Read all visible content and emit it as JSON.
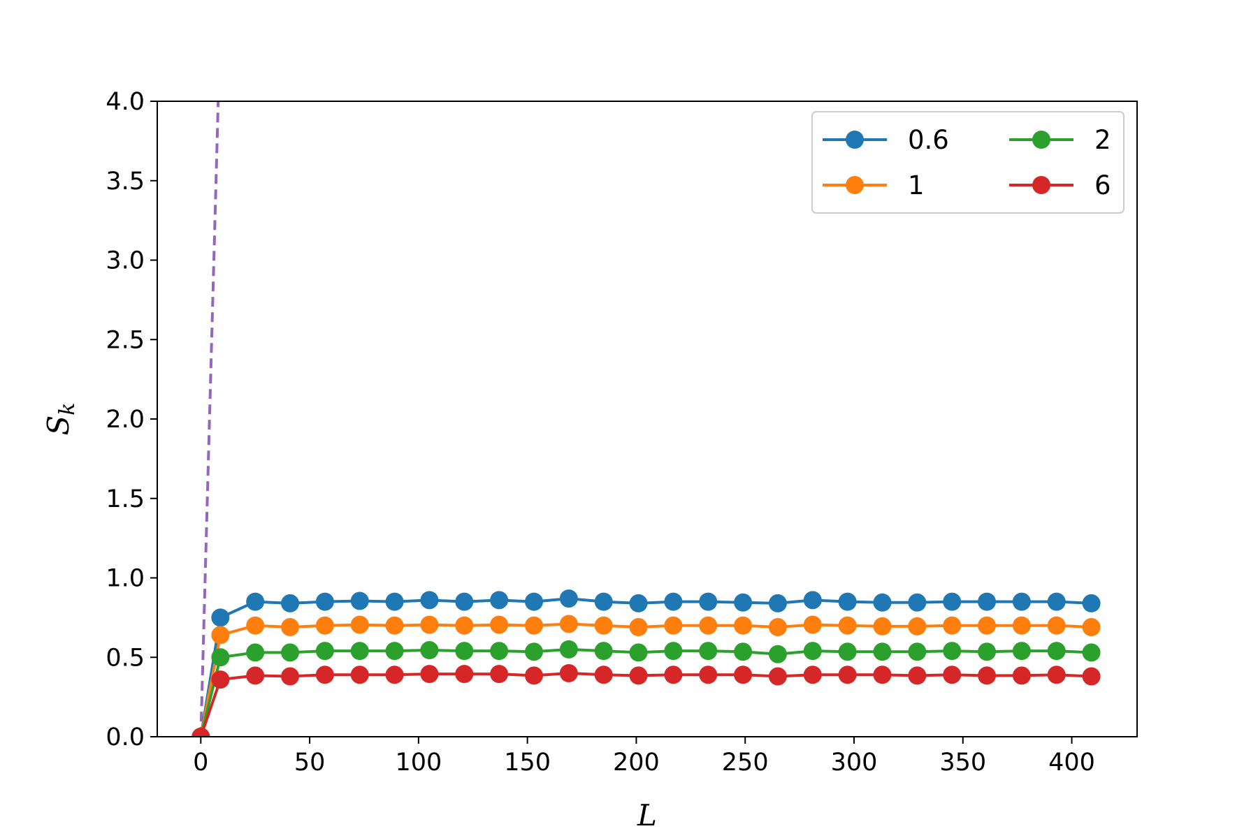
{
  "chart_data": {
    "type": "line",
    "title": "",
    "xlabel": "L",
    "ylabel_main": "S",
    "ylabel_sub": "k",
    "xlim": [
      -20,
      430
    ],
    "ylim": [
      0,
      4.0
    ],
    "xticks": [
      0,
      50,
      100,
      150,
      200,
      250,
      300,
      350,
      400
    ],
    "xtick_labels": [
      "0",
      "50",
      "100",
      "150",
      "200",
      "250",
      "300",
      "350",
      "400"
    ],
    "yticks": [
      0,
      0.5,
      1.0,
      1.5,
      2.0,
      2.5,
      3.0,
      3.5,
      4.0
    ],
    "ytick_labels": [
      "0.0",
      "0.5",
      "1.0",
      "1.5",
      "2.0",
      "2.5",
      "3.0",
      "3.5",
      "4.0"
    ],
    "grid": false,
    "legend_position": "top-right",
    "legend_columns": 2,
    "x": [
      0,
      9,
      25,
      41,
      57,
      73,
      89,
      105,
      121,
      137,
      153,
      169,
      185,
      201,
      217,
      233,
      249,
      265,
      281,
      297,
      313,
      329,
      345,
      361,
      377,
      393,
      409
    ],
    "series": [
      {
        "name": "0.6",
        "color": "#1f77b4",
        "values": [
          0,
          0.75,
          0.85,
          0.84,
          0.85,
          0.855,
          0.85,
          0.86,
          0.85,
          0.86,
          0.85,
          0.87,
          0.85,
          0.84,
          0.85,
          0.85,
          0.845,
          0.84,
          0.86,
          0.85,
          0.845,
          0.845,
          0.85,
          0.85,
          0.85,
          0.85,
          0.84
        ]
      },
      {
        "name": "1",
        "color": "#ff7f0e",
        "values": [
          0,
          0.64,
          0.7,
          0.69,
          0.7,
          0.705,
          0.7,
          0.705,
          0.7,
          0.705,
          0.7,
          0.71,
          0.7,
          0.69,
          0.7,
          0.7,
          0.7,
          0.69,
          0.705,
          0.7,
          0.695,
          0.695,
          0.7,
          0.7,
          0.7,
          0.7,
          0.69
        ]
      },
      {
        "name": "2",
        "color": "#2ca02c",
        "values": [
          0,
          0.5,
          0.53,
          0.53,
          0.54,
          0.54,
          0.54,
          0.545,
          0.54,
          0.54,
          0.535,
          0.55,
          0.54,
          0.53,
          0.54,
          0.54,
          0.535,
          0.52,
          0.54,
          0.535,
          0.535,
          0.535,
          0.54,
          0.535,
          0.54,
          0.54,
          0.53
        ]
      },
      {
        "name": "6",
        "color": "#d62728",
        "values": [
          0,
          0.36,
          0.385,
          0.38,
          0.39,
          0.39,
          0.39,
          0.395,
          0.395,
          0.395,
          0.385,
          0.4,
          0.39,
          0.385,
          0.39,
          0.39,
          0.39,
          0.38,
          0.39,
          0.39,
          0.39,
          0.385,
          0.39,
          0.385,
          0.385,
          0.39,
          0.38
        ]
      }
    ],
    "reference_line": {
      "color": "#9467bd",
      "style": "dashed",
      "x": [
        0,
        8
      ],
      "y": [
        0,
        4.0
      ]
    }
  }
}
